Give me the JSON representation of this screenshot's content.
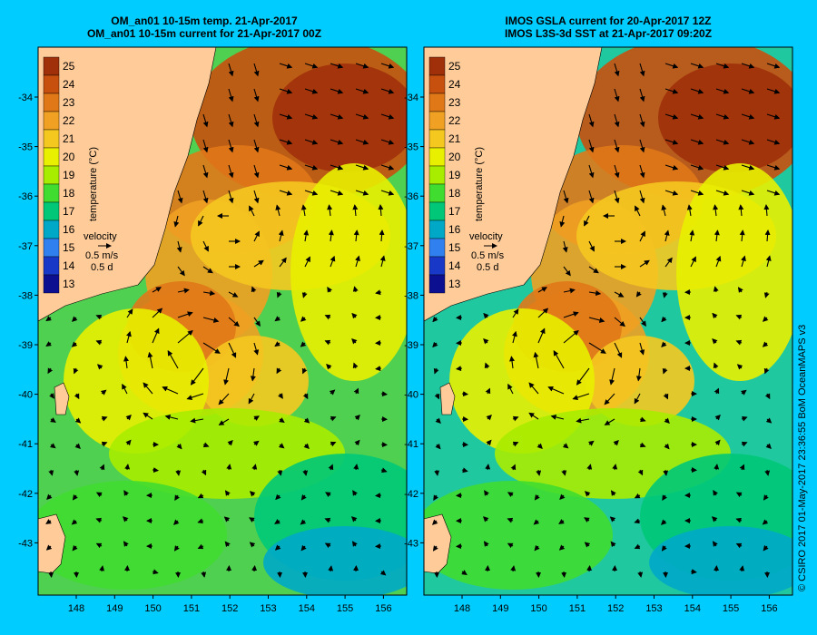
{
  "panels": [
    {
      "title_line1": "OM_an01 10-15m temp. 21-Apr-2017",
      "title_line2": "OM_an01 10-15m current for 21-Apr-2017 00Z"
    },
    {
      "title_line1": "IMOS GSLA current for 20-Apr-2017 12Z",
      "title_line2": "IMOS L3S-3d SST at 21-Apr-2017 09:20Z"
    }
  ],
  "colorbar": {
    "label": "temperature (°C)",
    "ticks": [
      "25",
      "24",
      "23",
      "22",
      "21",
      "20",
      "19",
      "18",
      "17",
      "16",
      "15",
      "14",
      "13"
    ],
    "colors": [
      "#a0300a",
      "#c8500e",
      "#e07818",
      "#f0a022",
      "#f5c820",
      "#e8f000",
      "#a8ec00",
      "#40dc30",
      "#00c878",
      "#00a8c8",
      "#3080f0",
      "#1838c8",
      "#0c1090"
    ]
  },
  "velocity_legend": {
    "title": "velocity",
    "speed": "0.5 m/s",
    "duration": "0.5 d"
  },
  "axes": {
    "lat_labels": [
      "-34",
      "-35",
      "-36",
      "-37",
      "-38",
      "-39",
      "-40",
      "-41",
      "-42",
      "-43"
    ],
    "lon_labels": [
      "148",
      "149",
      "150",
      "151",
      "152",
      "153",
      "154",
      "155",
      "156"
    ]
  },
  "credit": "© CSIRO 2017   01-May-2017 23:36:55 BoM OceanMAPS v3",
  "colors": {
    "land": "#ffcc99",
    "background": "#00ccff"
  }
}
